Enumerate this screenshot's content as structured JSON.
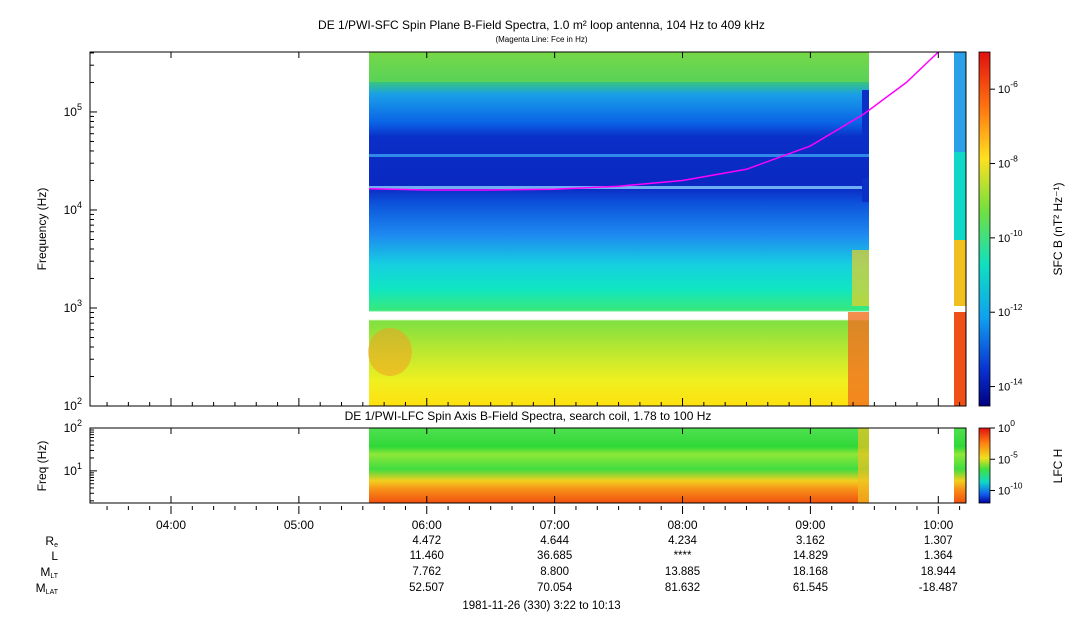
{
  "chart_data": [
    {
      "type": "heatmap",
      "title": "DE 1/PWI-SFC  Spin Plane B-Field Spectra, 1.0 m² loop antenna, 104 Hz to 409 kHz",
      "subtitle": "(Magenta Line: Fce in Hz)",
      "ylabel": "Frequency (Hz)",
      "yscale": "log",
      "ylim": [
        100,
        409000
      ],
      "y_ticks": [
        "10^2",
        "10^3",
        "10^4",
        "10^5"
      ],
      "xlim": [
        "03:22",
        "10:13"
      ],
      "data_intervals": [
        [
          "05:33",
          "09:25"
        ],
        [
          "10:07",
          "10:13"
        ]
      ],
      "colorbar": {
        "label": "SFC B (nT² Hz⁻¹)",
        "scale": "log",
        "range": [
          3e-15,
          1e-05
        ],
        "ticks": [
          "10^-6",
          "10^-8",
          "10^-10",
          "10^-12",
          "10^-14"
        ]
      },
      "overlay": {
        "name": "Fce",
        "color": "#ff00ff",
        "points": [
          {
            "t": "05:33",
            "f": 16500
          },
          {
            "t": "06:00",
            "f": 16000
          },
          {
            "t": "06:30",
            "f": 16000
          },
          {
            "t": "07:00",
            "f": 16300
          },
          {
            "t": "07:30",
            "f": 17500
          },
          {
            "t": "08:00",
            "f": 20000
          },
          {
            "t": "08:30",
            "f": 26000
          },
          {
            "t": "09:00",
            "f": 45000
          },
          {
            "t": "09:25",
            "f": 95000
          },
          {
            "t": "09:45",
            "f": 200000
          },
          {
            "t": "10:00",
            "f": 409000
          }
        ]
      }
    },
    {
      "type": "heatmap",
      "title": "DE 1/PWI-LFC  Spin Axis B-Field Spectra, search coil, 1.78 to 100 Hz",
      "ylabel": "Freq (Hz)",
      "yscale": "log",
      "ylim": [
        1.78,
        100
      ],
      "y_ticks": [
        "10^1",
        "10^2"
      ],
      "data_intervals": [
        [
          "05:33",
          "09:25"
        ],
        [
          "10:07",
          "10:13"
        ]
      ],
      "colorbar": {
        "label": "LFC H",
        "scale": "log",
        "range": [
          1e-12,
          1
        ],
        "ticks": [
          "10^0",
          "10^-5",
          "10^-10"
        ]
      }
    }
  ],
  "x_axis": {
    "tick_labels": [
      "04:00",
      "05:00",
      "06:00",
      "07:00",
      "08:00",
      "09:00",
      "10:00"
    ]
  },
  "ephemeris": {
    "rows": [
      {
        "label": "R",
        "sub": "e",
        "values": [
          "4.472",
          "4.644",
          "4.234",
          "3.162",
          "1.307"
        ]
      },
      {
        "label": "L",
        "sub": "",
        "values": [
          "11.460",
          "36.685",
          "****",
          "14.829",
          "1.364"
        ]
      },
      {
        "label": "M",
        "sub": "LT",
        "values": [
          "7.762",
          "8.800",
          "13.885",
          "18.168",
          "18.944"
        ]
      },
      {
        "label": "M",
        "sub": "LAT",
        "values": [
          "52.507",
          "70.054",
          "81.632",
          "61.545",
          "-18.487"
        ]
      }
    ]
  },
  "footer": "1981-11-26 (330) 3:22 to 10:13"
}
